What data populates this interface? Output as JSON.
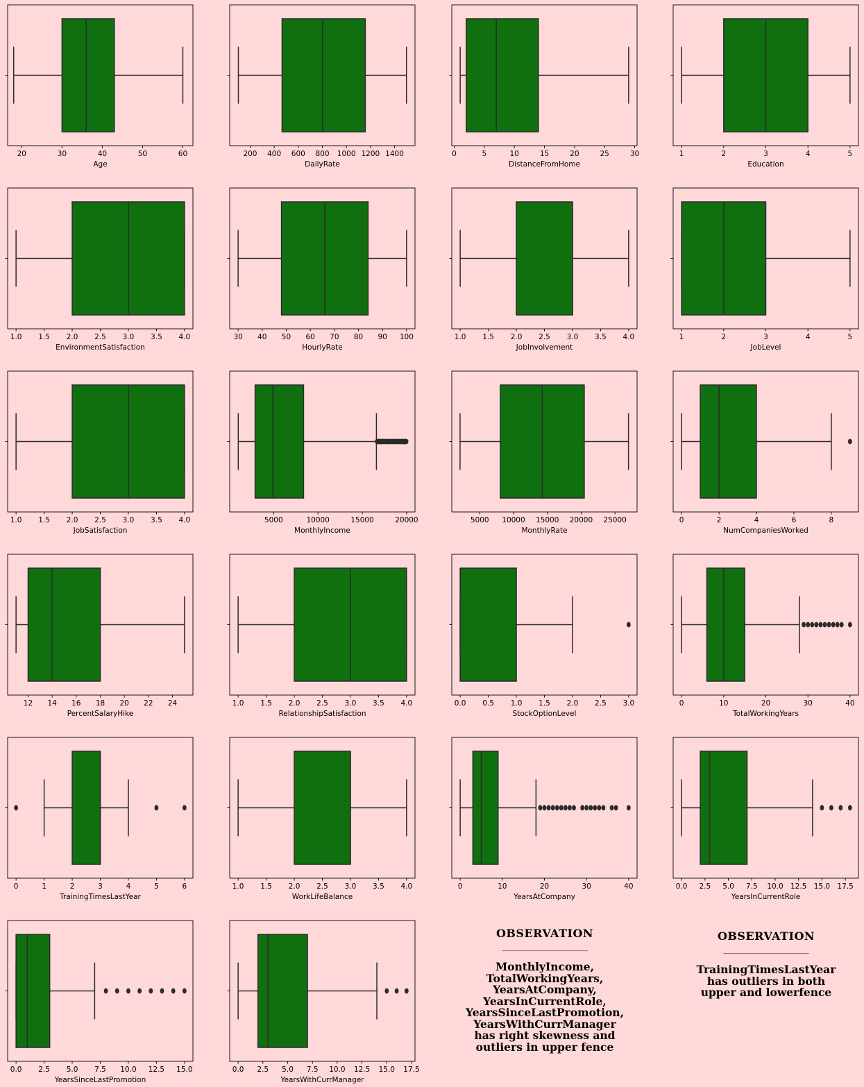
{
  "colors": {
    "background": "#ffd9d9",
    "box_fill": "#107010",
    "line": "#2b2b2b"
  },
  "chart_data": [
    {
      "type": "box",
      "xlabel": "Age",
      "ticks": [
        20,
        30,
        40,
        50,
        60
      ],
      "xlim": [
        16.5,
        62.5
      ],
      "whisker_low": 18,
      "q1": 30,
      "median": 36,
      "q3": 43,
      "whisker_high": 60,
      "outliers": []
    },
    {
      "type": "box",
      "xlabel": "DailyRate",
      "ticks": [
        200,
        400,
        600,
        800,
        1000,
        1200,
        1400
      ],
      "tick_labels": [
        "200",
        "400",
        "600",
        "800",
        "1000",
        "1200",
        "1400"
      ],
      "xlim": [
        30,
        1570
      ],
      "whisker_low": 102,
      "q1": 465,
      "median": 802,
      "q3": 1157,
      "whisker_high": 1499,
      "outliers": []
    },
    {
      "type": "box",
      "xlabel": "DistanceFromHome",
      "ticks": [
        0,
        5,
        10,
        15,
        20,
        25,
        30
      ],
      "xlim": [
        -0.4,
        30.4
      ],
      "whisker_low": 1,
      "q1": 2,
      "median": 7,
      "q3": 14,
      "whisker_high": 29,
      "outliers": []
    },
    {
      "type": "box",
      "xlabel": "Education",
      "ticks": [
        1,
        2,
        3,
        4,
        5
      ],
      "xlim": [
        0.8,
        5.2
      ],
      "whisker_low": 1,
      "q1": 2,
      "median": 3,
      "q3": 4,
      "whisker_high": 5,
      "outliers": []
    },
    {
      "type": "box",
      "xlabel": "EnvironmentSatisfaction",
      "ticks": [
        1.0,
        1.5,
        2.0,
        2.5,
        3.0,
        3.5,
        4.0
      ],
      "tick_labels": [
        "1.0",
        "1.5",
        "2.0",
        "2.5",
        "3.0",
        "3.5",
        "4.0"
      ],
      "xlim": [
        0.85,
        4.15
      ],
      "whisker_low": 1,
      "q1": 2,
      "median": 3,
      "q3": 4,
      "whisker_high": 4,
      "outliers": []
    },
    {
      "type": "box",
      "xlabel": "HourlyRate",
      "ticks": [
        30,
        40,
        50,
        60,
        70,
        80,
        90,
        100
      ],
      "xlim": [
        26.5,
        103.5
      ],
      "whisker_low": 30,
      "q1": 48,
      "median": 66,
      "q3": 84,
      "whisker_high": 100,
      "outliers": []
    },
    {
      "type": "box",
      "xlabel": "JobInvolvement",
      "ticks": [
        1.0,
        1.5,
        2.0,
        2.5,
        3.0,
        3.5,
        4.0
      ],
      "tick_labels": [
        "1.0",
        "1.5",
        "2.0",
        "2.5",
        "3.0",
        "3.5",
        "4.0"
      ],
      "xlim": [
        0.85,
        4.15
      ],
      "whisker_low": 1,
      "q1": 2,
      "median": 3,
      "q3": 3,
      "whisker_high": 4,
      "outliers": []
    },
    {
      "type": "box",
      "xlabel": "JobLevel",
      "ticks": [
        1,
        2,
        3,
        4,
        5
      ],
      "xlim": [
        0.8,
        5.2
      ],
      "whisker_low": 1,
      "q1": 1,
      "median": 2,
      "q3": 3,
      "whisker_high": 5,
      "outliers": []
    },
    {
      "type": "box",
      "xlabel": "JobSatisfaction",
      "ticks": [
        1.0,
        1.5,
        2.0,
        2.5,
        3.0,
        3.5,
        4.0
      ],
      "tick_labels": [
        "1.0",
        "1.5",
        "2.0",
        "2.5",
        "3.0",
        "3.5",
        "4.0"
      ],
      "xlim": [
        0.85,
        4.15
      ],
      "whisker_low": 1,
      "q1": 2,
      "median": 3,
      "q3": 4,
      "whisker_high": 4,
      "outliers": []
    },
    {
      "type": "box",
      "xlabel": "MonthlyIncome",
      "ticks": [
        5000,
        10000,
        15000,
        20000
      ],
      "tick_labels": [
        "5000",
        "10000",
        "15000",
        "20000"
      ],
      "xlim": [
        46,
        20946
      ],
      "whisker_low": 1009,
      "q1": 2911,
      "median": 4919,
      "q3": 8379,
      "whisker_high": 16595,
      "outliers": [
        16659,
        16799,
        16959,
        17048,
        17159,
        17328,
        17444,
        17603,
        17779,
        17924,
        18041,
        18200,
        18430,
        18606,
        18740,
        18947,
        19033,
        19189,
        19272,
        19431,
        19545,
        19665,
        19740,
        19859,
        19973
      ]
    },
    {
      "type": "box",
      "xlabel": "MonthlyRate",
      "ticks": [
        5000,
        10000,
        15000,
        20000,
        25000
      ],
      "tick_labels": [
        "5000",
        "10000",
        "15000",
        "20000",
        "25000"
      ],
      "xlim": [
        869,
        28269
      ],
      "whisker_low": 2094,
      "q1": 8047,
      "median": 14236,
      "q3": 20462,
      "whisker_high": 26999,
      "outliers": []
    },
    {
      "type": "box",
      "xlabel": "NumCompaniesWorked",
      "ticks": [
        0,
        2,
        4,
        6,
        8
      ],
      "xlim": [
        -0.45,
        9.45
      ],
      "whisker_low": 0,
      "q1": 1,
      "median": 2,
      "q3": 4,
      "whisker_high": 8,
      "outliers": [
        9
      ]
    },
    {
      "type": "box",
      "xlabel": "PercentSalaryHike",
      "ticks": [
        12,
        14,
        16,
        18,
        20,
        22,
        24
      ],
      "xlim": [
        10.3,
        25.7
      ],
      "whisker_low": 11,
      "q1": 12,
      "median": 14,
      "q3": 18,
      "whisker_high": 25,
      "outliers": []
    },
    {
      "type": "box",
      "xlabel": "RelationshipSatisfaction",
      "ticks": [
        1.0,
        1.5,
        2.0,
        2.5,
        3.0,
        3.5,
        4.0
      ],
      "tick_labels": [
        "1.0",
        "1.5",
        "2.0",
        "2.5",
        "3.0",
        "3.5",
        "4.0"
      ],
      "xlim": [
        0.85,
        4.15
      ],
      "whisker_low": 1,
      "q1": 2,
      "median": 3,
      "q3": 4,
      "whisker_high": 4,
      "outliers": []
    },
    {
      "type": "box",
      "xlabel": "StockOptionLevel",
      "ticks": [
        0.0,
        0.5,
        1.0,
        1.5,
        2.0,
        2.5,
        3.0
      ],
      "tick_labels": [
        "0.0",
        "0.5",
        "1.0",
        "1.5",
        "2.0",
        "2.5",
        "3.0"
      ],
      "xlim": [
        -0.15,
        3.15
      ],
      "whisker_low": 0,
      "q1": 0,
      "median": 0,
      "q3": 1,
      "whisker_high": 2,
      "outliers": [
        3
      ]
    },
    {
      "type": "box",
      "xlabel": "TotalWorkingYears",
      "ticks": [
        0,
        10,
        20,
        30,
        40
      ],
      "xlim": [
        -2,
        42
      ],
      "whisker_low": 0,
      "q1": 6,
      "median": 10,
      "q3": 15,
      "whisker_high": 28,
      "outliers": [
        29,
        30,
        31,
        32,
        33,
        34,
        35,
        36,
        37,
        38,
        40
      ]
    },
    {
      "type": "box",
      "xlabel": "TrainingTimesLastYear",
      "ticks": [
        0,
        1,
        2,
        3,
        4,
        5,
        6
      ],
      "xlim": [
        -0.3,
        6.3
      ],
      "whisker_low": 1,
      "q1": 2,
      "median": 3,
      "q3": 3,
      "whisker_high": 4,
      "outliers": [
        0,
        5,
        6
      ]
    },
    {
      "type": "box",
      "xlabel": "WorkLifeBalance",
      "ticks": [
        1.0,
        1.5,
        2.0,
        2.5,
        3.0,
        3.5,
        4.0
      ],
      "tick_labels": [
        "1.0",
        "1.5",
        "2.0",
        "2.5",
        "3.0",
        "3.5",
        "4.0"
      ],
      "xlim": [
        0.85,
        4.15
      ],
      "whisker_low": 1,
      "q1": 2,
      "median": 3,
      "q3": 3,
      "whisker_high": 4,
      "outliers": []
    },
    {
      "type": "box",
      "xlabel": "YearsAtCompany",
      "ticks": [
        0,
        10,
        20,
        30,
        40
      ],
      "xlim": [
        -2,
        42
      ],
      "whisker_low": 0,
      "q1": 3,
      "median": 5,
      "q3": 9,
      "whisker_high": 18,
      "outliers": [
        19,
        20,
        21,
        22,
        23,
        24,
        25,
        26,
        27,
        29,
        30,
        31,
        32,
        33,
        34,
        36,
        37,
        40
      ]
    },
    {
      "type": "box",
      "xlabel": "YearsInCurrentRole",
      "ticks": [
        0.0,
        2.5,
        5.0,
        7.5,
        10.0,
        12.5,
        15.0,
        17.5
      ],
      "tick_labels": [
        "0.0",
        "2.5",
        "5.0",
        "7.5",
        "10.0",
        "12.5",
        "15.0",
        "17.5"
      ],
      "xlim": [
        -0.9,
        18.9
      ],
      "whisker_low": 0,
      "q1": 2,
      "median": 3,
      "q3": 7,
      "whisker_high": 14,
      "outliers": [
        15,
        16,
        17,
        18
      ]
    },
    {
      "type": "box",
      "xlabel": "YearsSinceLastPromotion",
      "ticks": [
        0.0,
        2.5,
        5.0,
        7.5,
        10.0,
        12.5,
        15.0
      ],
      "tick_labels": [
        "0.0",
        "2.5",
        "5.0",
        "7.5",
        "10.0",
        "12.5",
        "15.0"
      ],
      "xlim": [
        -0.75,
        15.75
      ],
      "whisker_low": 0,
      "q1": 0,
      "median": 1,
      "q3": 3,
      "whisker_high": 7,
      "outliers": [
        8,
        9,
        10,
        11,
        12,
        13,
        14,
        15
      ]
    },
    {
      "type": "box",
      "xlabel": "YearsWithCurrManager",
      "ticks": [
        0.0,
        2.5,
        5.0,
        7.5,
        10.0,
        12.5,
        15.0,
        17.5
      ],
      "tick_labels": [
        "0.0",
        "2.5",
        "5.0",
        "7.5",
        "10.0",
        "12.5",
        "15.0",
        "17.5"
      ],
      "xlim": [
        -0.85,
        17.85
      ],
      "whisker_low": 0,
      "q1": 2,
      "median": 3,
      "q3": 7,
      "whisker_high": 14,
      "outliers": [
        15,
        16,
        17
      ]
    }
  ],
  "observations": [
    {
      "title": "OBSERVATION",
      "rule": "___________________",
      "body": "MonthlyIncome,\nTotalWorkingYears,\nYearsAtCompany,\nYearsInCurrentRole,\nYearsSinceLastPromotion,\nYearsWithCurrManager\n has right skewness and\noutliers in upper fence"
    },
    {
      "title": "OBSERVATION",
      "rule": "___________________",
      "body": "TrainingTimesLastYear\nhas outliers in both\nupper and lowerfence"
    }
  ]
}
